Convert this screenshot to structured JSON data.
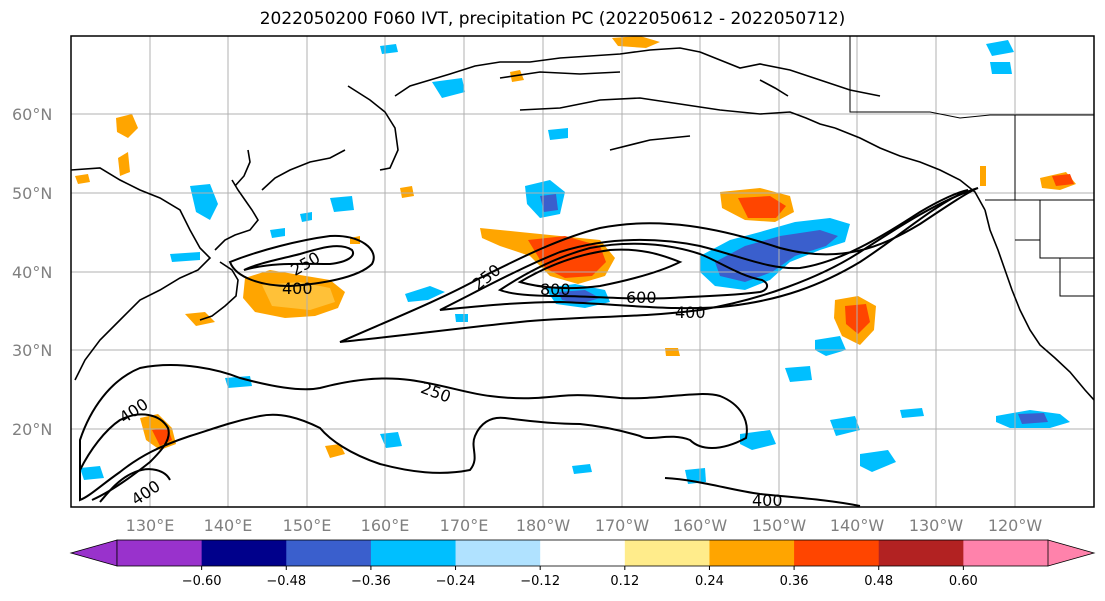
{
  "title": "2022050200 F060 IVT, precipitation PC (2022050612 - 2022050712)",
  "lat_labels": [
    {
      "text": "60°N",
      "lat": 60
    },
    {
      "text": "50°N",
      "lat": 50
    },
    {
      "text": "40°N",
      "lat": 40
    },
    {
      "text": "30°N",
      "lat": 30
    },
    {
      "text": "20°N",
      "lat": 20
    }
  ],
  "lon_labels": [
    "130°E",
    "140°E",
    "150°E",
    "160°E",
    "170°E",
    "180°W",
    "170°W",
    "160°W",
    "150°W",
    "140°W",
    "130°W",
    "120°W"
  ],
  "colorbar": {
    "colors": [
      "#9932cc",
      "#00008b",
      "#3a5fcd",
      "#00bfff",
      "#b0e2ff",
      "#ffffff",
      "#ffec8b",
      "#ffa500",
      "#ff4500",
      "#b22222",
      "#ff82ab"
    ],
    "tick_labels": [
      "−0.60",
      "−0.48",
      "−0.36",
      "−0.24",
      "−0.12",
      "0.12",
      "0.24",
      "0.36",
      "0.48",
      "0.60"
    ]
  },
  "contour_labels": [
    {
      "text": "250"
    },
    {
      "text": "400"
    },
    {
      "text": "250"
    },
    {
      "text": "800"
    },
    {
      "text": "600"
    },
    {
      "text": "400"
    },
    {
      "text": "250"
    },
    {
      "text": "400"
    },
    {
      "text": "400"
    },
    {
      "text": "400"
    }
  ]
}
